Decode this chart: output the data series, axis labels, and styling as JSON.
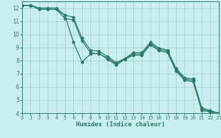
{
  "xlabel": "Humidex (Indice chaleur)",
  "bg_color": "#c8eeee",
  "grid_color": "#a0cccc",
  "line_color": "#2a7a6a",
  "xlim": [
    0,
    23
  ],
  "ylim": [
    4,
    12.5
  ],
  "xticks": [
    0,
    1,
    2,
    3,
    4,
    5,
    6,
    7,
    8,
    9,
    10,
    11,
    12,
    13,
    14,
    15,
    16,
    17,
    18,
    19,
    20,
    21,
    22,
    23
  ],
  "yticks": [
    4,
    5,
    6,
    7,
    8,
    9,
    10,
    11,
    12
  ],
  "series": [
    [
      12.2,
      12.2,
      11.9,
      11.9,
      11.9,
      11.2,
      11.1,
      9.5,
      8.6,
      8.5,
      8.2,
      7.75,
      8.1,
      8.5,
      8.5,
      9.3,
      8.85,
      8.7,
      7.3,
      6.6,
      6.5,
      4.3,
      4.15,
      4.0
    ],
    [
      12.2,
      12.2,
      11.9,
      11.9,
      11.9,
      11.45,
      11.3,
      9.7,
      8.8,
      8.7,
      8.3,
      7.85,
      8.15,
      8.6,
      8.6,
      9.4,
      8.95,
      8.8,
      7.4,
      6.7,
      6.6,
      4.4,
      4.2,
      4.0
    ],
    [
      12.2,
      12.2,
      12.0,
      12.0,
      12.0,
      11.45,
      9.4,
      7.9,
      8.5,
      8.55,
      8.1,
      7.65,
      8.1,
      8.4,
      8.4,
      9.2,
      8.75,
      8.6,
      7.2,
      6.5,
      6.4,
      4.2,
      4.1,
      3.9
    ]
  ]
}
